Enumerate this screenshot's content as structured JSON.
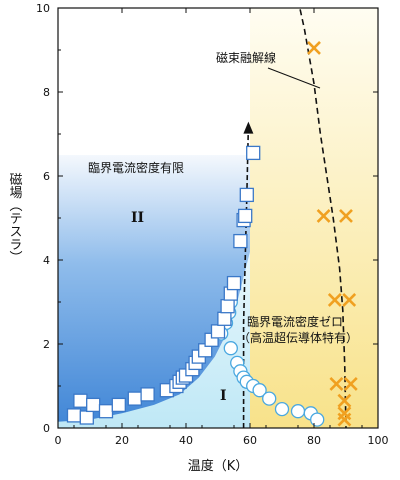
{
  "chart_data": {
    "type": "scatter",
    "xlabel": "温度（K）",
    "ylabel": "磁場（テスラ）",
    "xlim": [
      0,
      100
    ],
    "ylim": [
      0,
      10
    ],
    "xticks": [
      "0",
      "20",
      "40",
      "60",
      "80",
      "100"
    ],
    "yticks": [
      "0",
      "2",
      "4",
      "6",
      "8",
      "10"
    ],
    "grid": false,
    "colors": {
      "region_blue": "#4a8fd8",
      "region_yellow": "#fbf0b0",
      "squares": "#3a78c8",
      "circles": "#4aa8e0",
      "crosses": "#f0a020"
    },
    "region_labels": {
      "region_II": "II",
      "region_I": "I",
      "label_II": "臨界電流密度有限",
      "label_zero_1": "臨界電流密度ゼロ",
      "label_zero_2": "（高温超伝導体特有）",
      "melting_label": "磁束融解線"
    },
    "squares": [
      [
        7,
        0.65
      ],
      [
        5,
        0.3
      ],
      [
        9,
        0.25
      ],
      [
        11,
        0.55
      ],
      [
        15,
        0.4
      ],
      [
        19,
        0.55
      ],
      [
        24,
        0.7
      ],
      [
        28,
        0.8
      ],
      [
        34,
        0.9
      ],
      [
        37,
        1.0
      ],
      [
        38,
        1.1
      ],
      [
        39,
        1.2
      ],
      [
        40,
        1.25
      ],
      [
        42,
        1.4
      ],
      [
        43,
        1.55
      ],
      [
        44,
        1.7
      ],
      [
        46,
        1.85
      ],
      [
        48,
        2.1
      ],
      [
        50,
        2.3
      ],
      [
        52,
        2.6
      ],
      [
        53,
        2.9
      ],
      [
        54,
        3.2
      ],
      [
        55,
        3.45
      ],
      [
        57,
        4.45
      ],
      [
        58,
        4.95
      ],
      [
        58.5,
        5.05
      ],
      [
        59,
        5.55
      ],
      [
        61,
        6.55
      ]
    ],
    "circles": [
      [
        54,
        3.0
      ],
      [
        53.5,
        2.75
      ],
      [
        52.5,
        2.5
      ],
      [
        51,
        2.25
      ],
      [
        54,
        1.9
      ],
      [
        56,
        1.55
      ],
      [
        57,
        1.35
      ],
      [
        58,
        1.2
      ],
      [
        59,
        1.1
      ],
      [
        61,
        1.0
      ],
      [
        63,
        0.9
      ],
      [
        66,
        0.7
      ],
      [
        70,
        0.45
      ],
      [
        75,
        0.4
      ],
      [
        79,
        0.35
      ],
      [
        81,
        0.2
      ]
    ],
    "crosses": [
      [
        80,
        9.05
      ],
      [
        83,
        5.05
      ],
      [
        90,
        5.05
      ],
      [
        86.5,
        3.05
      ],
      [
        91,
        3.05
      ],
      [
        87,
        1.05
      ],
      [
        91.5,
        1.05
      ],
      [
        89.5,
        0.65
      ],
      [
        89.5,
        0.35
      ],
      [
        89.5,
        0.2
      ]
    ],
    "melting_line": [
      [
        75,
        10.2
      ],
      [
        77,
        9.5
      ],
      [
        80,
        8.2
      ],
      [
        82,
        7.0
      ],
      [
        84,
        6.0
      ],
      [
        86,
        5.0
      ],
      [
        88,
        3.8
      ],
      [
        89,
        2.8
      ],
      [
        89.6,
        1.5
      ],
      [
        90,
        0
      ]
    ],
    "dashed_boundary": [
      [
        58,
        0.0
      ],
      [
        58,
        2.5
      ],
      [
        58.5,
        4.0
      ],
      [
        59,
        5.5
      ],
      [
        59.5,
        7.2
      ]
    ]
  }
}
